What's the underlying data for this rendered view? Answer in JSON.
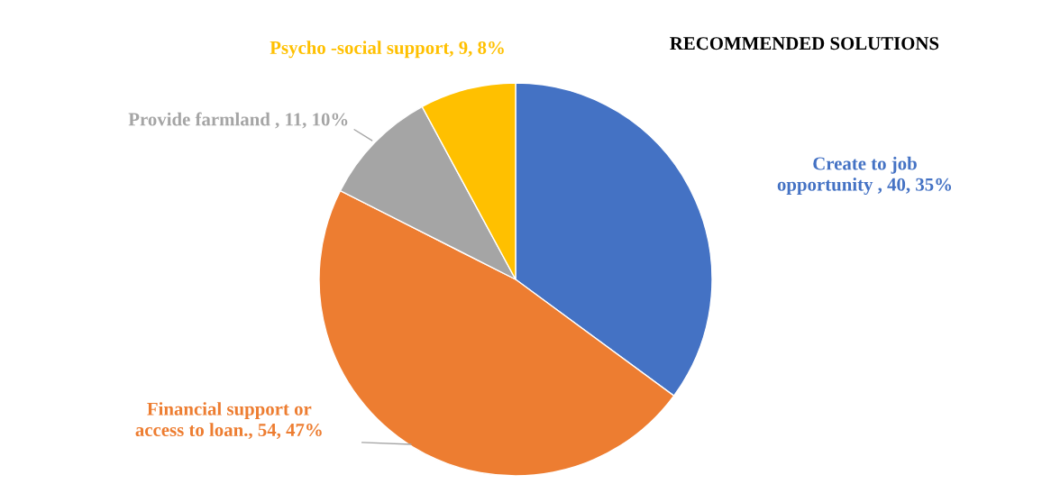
{
  "chart_data": {
    "type": "pie",
    "title": "RECOMMENDED SOLUTIONS",
    "categories": [
      "Create to job\nopportunity ",
      "Financial support or\naccess to loan.",
      "Provide farmland ",
      "Psycho -social support"
    ],
    "values": [
      40,
      54,
      11,
      9
    ],
    "value_labels": [
      "40, 35%",
      "54, 47%",
      "11, 10%",
      "9, 8%"
    ],
    "colors": [
      "#4472c4",
      "#ed7d31",
      "#a5a5a5",
      "#ffc000"
    ]
  }
}
